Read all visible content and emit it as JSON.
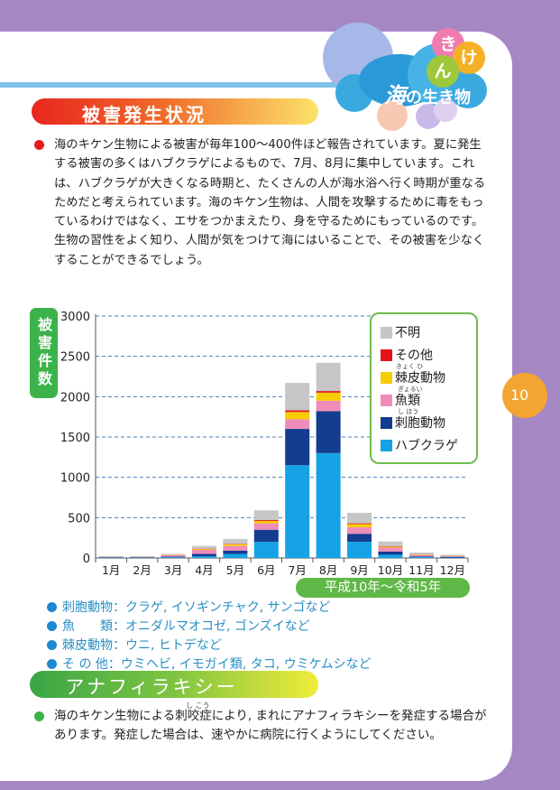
{
  "corner_logo": {
    "kana": [
      "き",
      "け",
      "ん"
    ],
    "title_strong": "海",
    "title_rest": "の生き物"
  },
  "page_number": "10",
  "section1": {
    "heading": "被害発生状況",
    "paragraph": "海のキケン生物による被害が毎年100～400件ほど報告されています。夏に発生する被害の多くはハブクラゲによるもので、7月、8月に集中しています。これは、ハブクラゲが大きくなる時期と、たくさんの人が海水浴へ行く時期が重なるためだと考えられています。海のキケン生物は、人間を攻撃するために毒をもっているわけではなく、エサをつかまえたり、身を守るためにもっているのです。生物の習性をよく知り、人間が気をつけて海にはいることで、その被害を少なくすることができるでしょう。"
  },
  "chart_data": {
    "type": "bar",
    "stacked": true,
    "ylabel": "被害件数",
    "ylim": [
      0,
      3000
    ],
    "yticks": [
      0,
      500,
      1000,
      1500,
      2000,
      2500,
      3000
    ],
    "grid": true,
    "legend_position": "top-right",
    "categories": [
      "1月",
      "2月",
      "3月",
      "4月",
      "5月",
      "6月",
      "7月",
      "8月",
      "9月",
      "10月",
      "11月",
      "12月"
    ],
    "period_label": "平成10年～令和5年",
    "series": [
      {
        "name": "ハブクラゲ",
        "color": "#16a3e6",
        "values": [
          5,
          5,
          8,
          20,
          50,
          200,
          1150,
          1300,
          200,
          40,
          10,
          5
        ]
      },
      {
        "name": "刺胞動物",
        "color": "#143c8f",
        "values": [
          5,
          5,
          10,
          30,
          40,
          150,
          450,
          520,
          100,
          40,
          10,
          10
        ]
      },
      {
        "name": "魚類",
        "color": "#ef8cba",
        "values": [
          5,
          5,
          15,
          50,
          60,
          80,
          120,
          130,
          80,
          50,
          20,
          10
        ]
      },
      {
        "name": "棘皮動物",
        "color": "#f7cc00",
        "values": [
          2,
          2,
          5,
          10,
          20,
          30,
          90,
          100,
          40,
          10,
          5,
          3
        ]
      },
      {
        "name": "その他",
        "color": "#e5141a",
        "values": [
          1,
          1,
          2,
          5,
          5,
          10,
          20,
          20,
          10,
          5,
          2,
          2
        ]
      },
      {
        "name": "不明",
        "color": "#c6c6c6",
        "values": [
          5,
          5,
          10,
          35,
          60,
          120,
          340,
          350,
          130,
          60,
          20,
          10
        ]
      }
    ],
    "legend_ruby": {
      "棘皮動物": "きょく ひ",
      "魚類": "ぎょるい",
      "刺胞動物": "し ほう"
    }
  },
  "definitions": [
    {
      "term": "刺胞動物",
      "sep": "：",
      "desc": "クラゲ, イソギンチャク, サンゴなど"
    },
    {
      "term": "魚　　類",
      "sep": "：",
      "desc": "オニダルマオコゼ, ゴンズイなど"
    },
    {
      "term": "棘皮動物",
      "sep": "：",
      "desc": "ウニ, ヒトデなど"
    },
    {
      "term": "そ の 他",
      "sep": "：",
      "desc": "ウミヘビ, イモガイ類, タコ, ウミケムシなど"
    }
  ],
  "section2": {
    "heading": "アナフィラキシー",
    "ruby": "し こう",
    "paragraph": "海のキケン生物による刺咬症により, まれにアナフィラキシーを発症する場合があります。発症した場合は、速やかに病院に行くようにしてください。"
  },
  "colors": {
    "page_bg": "#a587c4",
    "heading1_grad": [
      "#e8261e",
      "#fbe36a"
    ],
    "heading2_grad": [
      "#3aa646",
      "#f0ec3a"
    ],
    "accent_green": "#5fb847",
    "tab_orange": "#f3a531"
  }
}
